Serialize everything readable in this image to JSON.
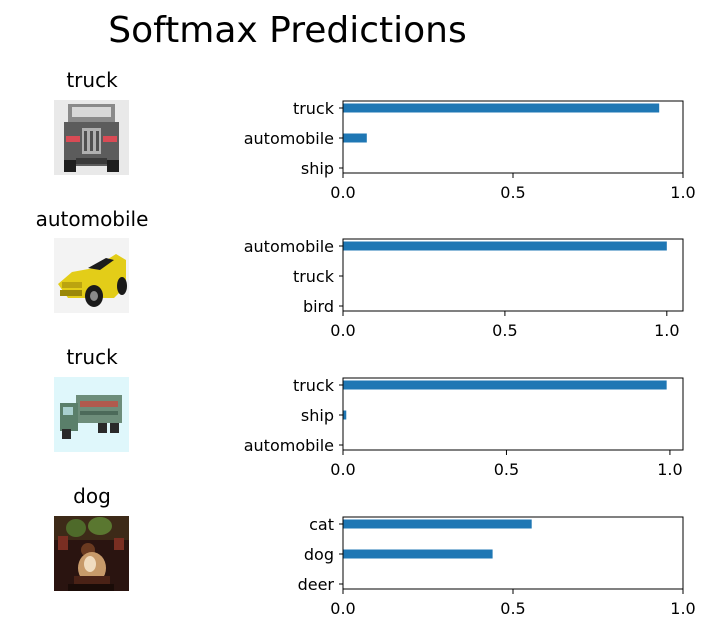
{
  "figure": {
    "title": "Softmax Predictions"
  },
  "rows": [
    {
      "label": "truck",
      "image_name": "truck-image"
    },
    {
      "label": "automobile",
      "image_name": "automobile-image"
    },
    {
      "label": "truck",
      "image_name": "truck-image"
    },
    {
      "label": "dog",
      "image_name": "dog-image"
    }
  ],
  "chart_data": [
    {
      "type": "bar",
      "orientation": "horizontal",
      "categories": [
        "truck",
        "automobile",
        "ship"
      ],
      "values": [
        0.93,
        0.07,
        0.0
      ],
      "xlim": [
        0.0,
        1.0
      ],
      "xticks": [
        "0.0",
        "0.5",
        "1.0"
      ],
      "bar_color": "#1f77b4"
    },
    {
      "type": "bar",
      "orientation": "horizontal",
      "categories": [
        "automobile",
        "truck",
        "bird"
      ],
      "values": [
        1.0,
        0.0,
        0.0
      ],
      "xlim": [
        0.0,
        1.05
      ],
      "xticks": [
        "0.0",
        "0.5",
        "1.0"
      ],
      "bar_color": "#1f77b4"
    },
    {
      "type": "bar",
      "orientation": "horizontal",
      "categories": [
        "truck",
        "ship",
        "automobile"
      ],
      "values": [
        0.99,
        0.01,
        0.0
      ],
      "xlim": [
        0.0,
        1.04
      ],
      "xticks": [
        "0.0",
        "0.5",
        "1.0"
      ],
      "bar_color": "#1f77b4"
    },
    {
      "type": "bar",
      "orientation": "horizontal",
      "categories": [
        "cat",
        "dog",
        "deer"
      ],
      "values": [
        0.555,
        0.44,
        0.0
      ],
      "xlim": [
        0.0,
        1.0
      ],
      "xticks": [
        "0.0",
        "0.5",
        "1.0"
      ],
      "bar_color": "#1f77b4"
    }
  ]
}
